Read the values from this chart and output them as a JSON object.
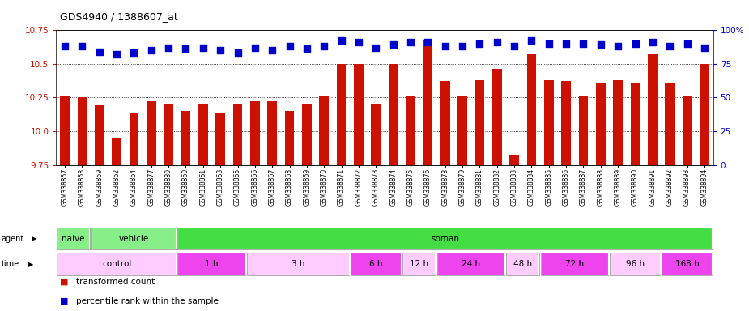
{
  "title": "GDS4940 / 1388607_at",
  "samples": [
    "GSM338857",
    "GSM338858",
    "GSM338859",
    "GSM338862",
    "GSM338864",
    "GSM338877",
    "GSM338880",
    "GSM338860",
    "GSM338861",
    "GSM338863",
    "GSM338865",
    "GSM338866",
    "GSM338867",
    "GSM338868",
    "GSM338869",
    "GSM338870",
    "GSM338871",
    "GSM338872",
    "GSM338873",
    "GSM338874",
    "GSM338875",
    "GSM338876",
    "GSM338878",
    "GSM338879",
    "GSM338881",
    "GSM338882",
    "GSM338883",
    "GSM338884",
    "GSM338885",
    "GSM338886",
    "GSM338887",
    "GSM338888",
    "GSM338889",
    "GSM338890",
    "GSM338891",
    "GSM338892",
    "GSM338893",
    "GSM338894"
  ],
  "bar_values": [
    10.26,
    10.25,
    10.19,
    9.95,
    10.14,
    10.22,
    10.2,
    10.15,
    10.2,
    10.14,
    10.2,
    10.22,
    10.22,
    10.15,
    10.2,
    10.26,
    10.5,
    10.5,
    10.2,
    10.5,
    10.26,
    10.68,
    10.37,
    10.26,
    10.38,
    10.46,
    9.83,
    10.57,
    10.38,
    10.37,
    10.26,
    10.36,
    10.38,
    10.36,
    10.57,
    10.36,
    10.26,
    10.5
  ],
  "percentile_values": [
    88,
    88,
    84,
    82,
    83,
    85,
    87,
    86,
    87,
    85,
    83,
    87,
    85,
    88,
    86,
    88,
    92,
    91,
    87,
    89,
    91,
    91,
    88,
    88,
    90,
    91,
    88,
    92,
    90,
    90,
    90,
    89,
    88,
    90,
    91,
    88,
    90,
    87
  ],
  "ylim": [
    9.75,
    10.75
  ],
  "yticks": [
    9.75,
    10.0,
    10.25,
    10.5,
    10.75
  ],
  "right_ylim": [
    0,
    100
  ],
  "right_yticks": [
    0,
    25,
    50,
    75,
    100
  ],
  "bar_color": "#cc1100",
  "dot_color": "#0000cc",
  "chart_bg": "#ffffff",
  "agent_groups": [
    {
      "label": "naive",
      "start": 0,
      "end": 2,
      "color": "#88ee88"
    },
    {
      "label": "vehicle",
      "start": 2,
      "end": 7,
      "color": "#88ee88"
    },
    {
      "label": "soman",
      "start": 7,
      "end": 38,
      "color": "#44dd44"
    }
  ],
  "time_groups": [
    {
      "label": "control",
      "start": 0,
      "end": 7,
      "color": "#ffccff"
    },
    {
      "label": "1 h",
      "start": 7,
      "end": 11,
      "color": "#ff66ff"
    },
    {
      "label": "3 h",
      "start": 11,
      "end": 17,
      "color": "#ffccff"
    },
    {
      "label": "6 h",
      "start": 17,
      "end": 20,
      "color": "#ff66ff"
    },
    {
      "label": "12 h",
      "start": 20,
      "end": 22,
      "color": "#ffccff"
    },
    {
      "label": "24 h",
      "start": 22,
      "end": 26,
      "color": "#ff66ff"
    },
    {
      "label": "48 h",
      "start": 26,
      "end": 28,
      "color": "#ffccff"
    },
    {
      "label": "72 h",
      "start": 28,
      "end": 32,
      "color": "#ff66ff"
    },
    {
      "label": "96 h",
      "start": 32,
      "end": 35,
      "color": "#ffccff"
    },
    {
      "label": "168 h",
      "start": 35,
      "end": 38,
      "color": "#ff66ff"
    }
  ],
  "dot_size": 35,
  "fig_width": 9.25,
  "fig_height": 3.84,
  "dpi": 100
}
